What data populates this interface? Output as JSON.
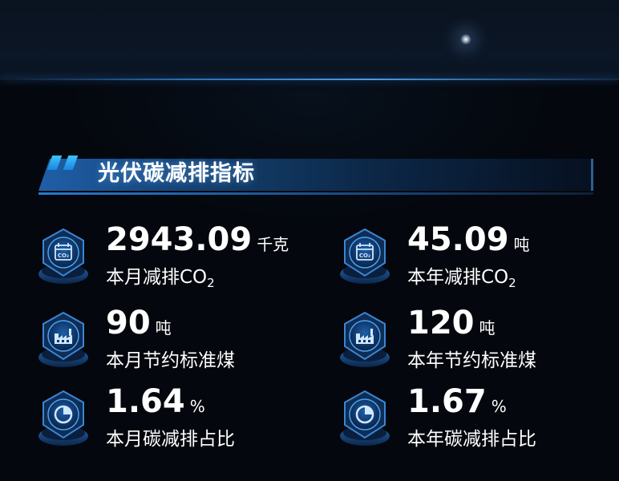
{
  "section": {
    "title": "光伏碳减排指标"
  },
  "metrics": [
    {
      "value": "2943.09",
      "unit": "千克",
      "label": "本月减排CO",
      "label_sub": "2",
      "icon": "co2-calendar-icon"
    },
    {
      "value": "45.09",
      "unit": "吨",
      "label": "本年减排CO",
      "label_sub": "2",
      "icon": "co2-calendar-icon"
    },
    {
      "value": "90",
      "unit": "吨",
      "label": "本月节约标准煤",
      "label_sub": "",
      "icon": "factory-icon"
    },
    {
      "value": "120",
      "unit": "吨",
      "label": "本年节约标准煤",
      "label_sub": "",
      "icon": "factory-icon"
    },
    {
      "value": "1.64",
      "unit": "%",
      "label": "本月碳减排占比",
      "label_sub": "",
      "icon": "pie-chart-icon"
    },
    {
      "value": "1.67",
      "unit": "%",
      "label": "本年碳减排占比",
      "label_sub": "",
      "icon": "pie-chart-icon"
    }
  ],
  "colors": {
    "accent": "#3cc4ff",
    "title_bar": "#1f5fa8",
    "background": "#04070d"
  }
}
